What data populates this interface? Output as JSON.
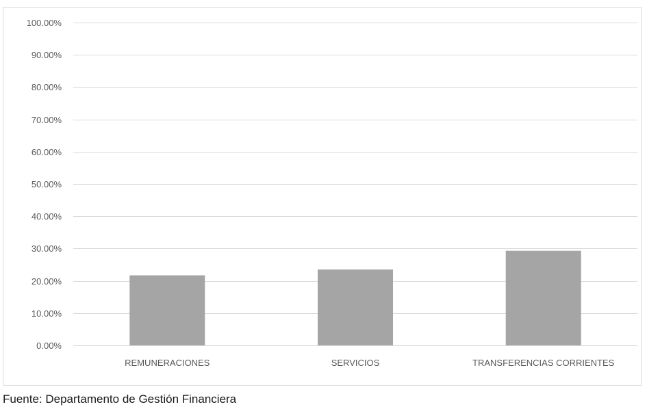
{
  "chart_data": {
    "type": "bar",
    "categories": [
      "REMUNERACIONES",
      "SERVICIOS",
      "TRANSFERENCIAS CORRIENTES"
    ],
    "values": [
      0.217,
      0.235,
      0.293
    ],
    "value_format": "percent_2dp",
    "ylim": [
      0,
      1.0
    ],
    "yticks": [
      0,
      0.1,
      0.2,
      0.3,
      0.4,
      0.5,
      0.6,
      0.7,
      0.8,
      0.9,
      1.0
    ],
    "ytick_labels": [
      "0.00%",
      "10.00%",
      "20.00%",
      "30.00%",
      "40.00%",
      "50.00%",
      "60.00%",
      "70.00%",
      "80.00%",
      "90.00%",
      "100.00%"
    ],
    "grid": true,
    "legend": "none",
    "bar_color": "#a5a5a5",
    "grid_color": "#d9d9d9",
    "label_color": "#595959"
  },
  "source_note": "Fuente:  Departamento de Gestión Financiera"
}
